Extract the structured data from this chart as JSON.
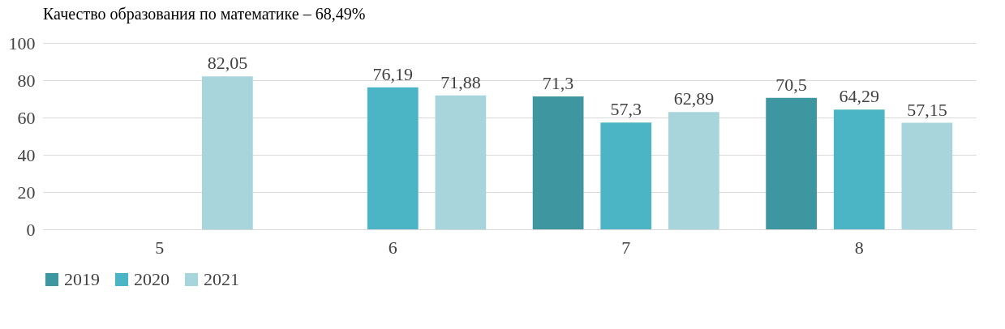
{
  "chart_data": {
    "type": "bar",
    "title": "Качество образования по математике – 68,49%",
    "categories": [
      "5",
      "6",
      "7",
      "8"
    ],
    "series": [
      {
        "name": "2019",
        "color": "#3d96a0",
        "values": [
          null,
          null,
          71.3,
          70.5
        ],
        "value_labels": [
          null,
          null,
          "71,3",
          "70,5"
        ]
      },
      {
        "name": "2020",
        "color": "#4bb5c5",
        "values": [
          null,
          76.19,
          57.3,
          64.29
        ],
        "value_labels": [
          null,
          "76,19",
          "57,3",
          "64,29"
        ]
      },
      {
        "name": "2021",
        "color": "#a8d4dc",
        "values": [
          82.05,
          71.88,
          62.89,
          57.15
        ],
        "value_labels": [
          "82,05",
          "71,88",
          "62,89",
          "57,15"
        ]
      }
    ],
    "ylim": [
      0,
      100
    ],
    "yticks": [
      0,
      20,
      40,
      60,
      80,
      100
    ],
    "grid": "y",
    "legend": "bottom"
  }
}
